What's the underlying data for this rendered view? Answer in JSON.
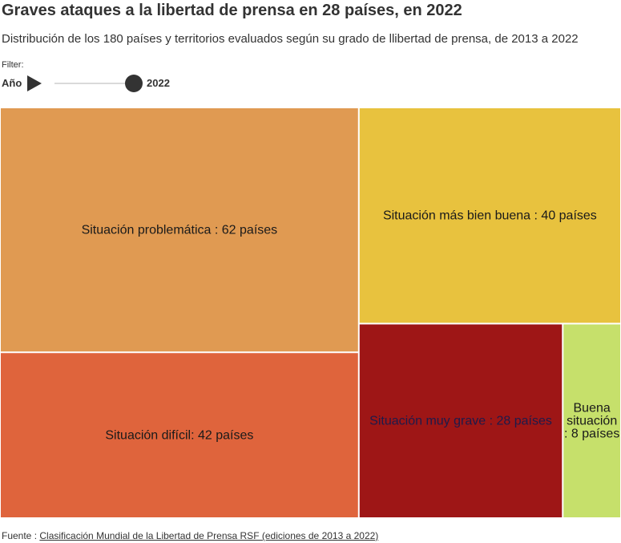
{
  "header": {
    "title": "Graves ataques a la libertad de prensa en 28 países, en 2022",
    "subtitle": "Distribución de los 180 países y territorios evaluados según su grado de llibertad de prensa, de 2013 a 2022"
  },
  "filter": {
    "label": "Filter:",
    "year_label": "Año",
    "play_icon": "play-icon",
    "selected_year": "2022",
    "range": [
      2013,
      2022
    ]
  },
  "chart_data": {
    "type": "treemap",
    "unit": "países",
    "total": 180,
    "year": 2022,
    "cells": [
      {
        "category": "Situación problemática",
        "value": 62,
        "label": "Situación problemática : 62 países",
        "color": "#E09A52",
        "text_color": "#1a1a1a"
      },
      {
        "category": "Situación difícil",
        "value": 42,
        "label": "Situación difícil: 42 países",
        "color": "#DF643C",
        "text_color": "#1a1a1a"
      },
      {
        "category": "Situación más bien buena",
        "value": 40,
        "label": "Situación más bien buena : 40 países",
        "color": "#E8C23E",
        "text_color": "#1a1a1a"
      },
      {
        "category": "Situación muy grave",
        "value": 28,
        "label": "Situación muy grave : 28 países",
        "color": "#9E1616",
        "text_color": "#1e1b4b"
      },
      {
        "category": "Buena situación",
        "value": 8,
        "label": "Buena situación : 8 países",
        "label_lines": [
          "Buena",
          "situación",
          ": 8 países"
        ],
        "color": "#C6E06B",
        "text_color": "#1a1a1a"
      }
    ]
  },
  "footer": {
    "source_prefix": "Fuente : ",
    "source_link": "Clasificación Mundial de la Libertad de Prensa RSF (ediciones de 2013 a 2022)"
  }
}
